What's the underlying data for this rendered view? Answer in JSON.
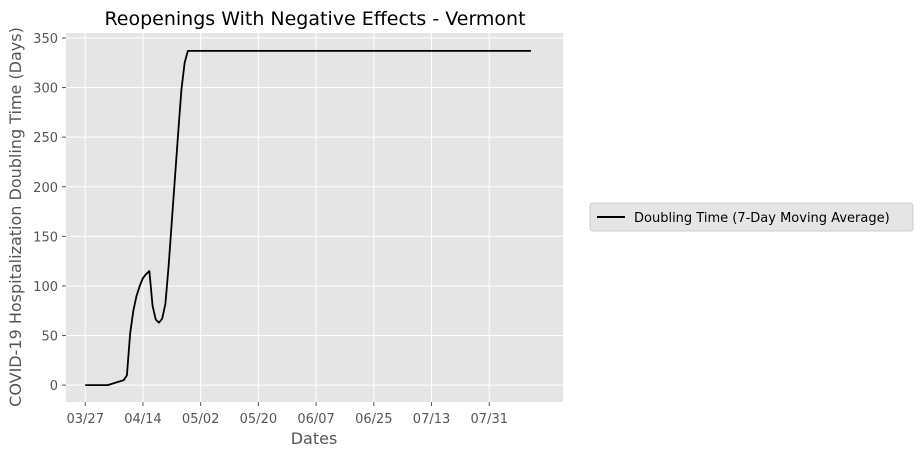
{
  "chart_data": {
    "type": "line",
    "title": "Reopenings With Negative Effects - Vermont",
    "xlabel": "Dates",
    "ylabel": "COVID-19 Hospitalization Doubling Time (Days)",
    "x_ticks": [
      "03/27",
      "04/14",
      "05/02",
      "05/20",
      "06/07",
      "06/25",
      "07/13",
      "07/31"
    ],
    "x_tick_days": [
      0,
      18,
      36,
      54,
      72,
      90,
      108,
      126
    ],
    "y_ticks": [
      0,
      50,
      100,
      150,
      200,
      250,
      300,
      350
    ],
    "xlim": [
      "03/21",
      "08/23"
    ],
    "ylim": [
      -17,
      355
    ],
    "grid": true,
    "legend": "right",
    "background": "#e5e5e5",
    "series": [
      {
        "name": "Doubling Time (7-Day Moving Average)",
        "color": "#000000",
        "x": [
          "03/27",
          "04/03",
          "04/06",
          "04/08",
          "04/09",
          "04/10",
          "04/11",
          "04/12",
          "04/13",
          "04/14",
          "04/15",
          "04/16",
          "04/17",
          "04/18",
          "04/19",
          "04/20",
          "04/21",
          "04/22",
          "04/23",
          "04/24",
          "04/25",
          "04/26",
          "04/27",
          "04/28",
          "04/29",
          "04/30",
          "08/13"
        ],
        "y": [
          0,
          0,
          3,
          5,
          10,
          52,
          75,
          90,
          100,
          108,
          112,
          115,
          80,
          66,
          63,
          67,
          82,
          120,
          165,
          210,
          255,
          298,
          325,
          337,
          337,
          337,
          337
        ]
      }
    ]
  }
}
